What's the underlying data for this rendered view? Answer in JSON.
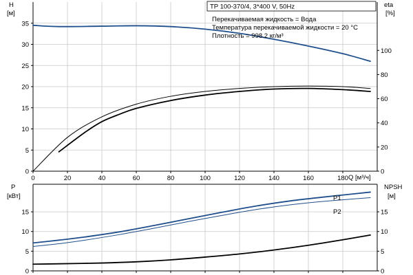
{
  "title": "TP 100-370/4, 3*400 V, 50Hz",
  "info_lines": [
    "Перекачиваемая жидкость = Вода",
    "Температура перекачиваемой жидкости = 20 °C",
    "Плотность = 998.2 кг/м³"
  ],
  "colors": {
    "blue": "#1f4e8c",
    "black": "#000000",
    "grid": "#c8c8c8"
  },
  "chart_data": [
    {
      "type": "line",
      "name": "top",
      "xlabel": "Q [м³/ч]",
      "xlim": [
        0,
        200
      ],
      "xticks": [
        0,
        20,
        40,
        60,
        80,
        100,
        120,
        140,
        160,
        180
      ],
      "x_tick_labels": [
        "0",
        "20",
        "40",
        "60",
        "80",
        "100",
        "120",
        "140",
        "160",
        "180"
      ],
      "left_axis": {
        "label": "H",
        "unit": "[м]",
        "ylim": [
          0,
          40
        ],
        "ticks": [
          0,
          5,
          10,
          15,
          20,
          25,
          30,
          35
        ],
        "tick_labels": [
          "0",
          "5",
          "10",
          "15",
          "20",
          "25",
          "30",
          "35"
        ]
      },
      "right_axis": {
        "label": "eta",
        "unit": "[%]",
        "ylim": [
          0,
          140
        ],
        "ticks": [
          0,
          20,
          40,
          60,
          80,
          100
        ],
        "tick_labels": [
          "0",
          "20",
          "40",
          "60",
          "80",
          "100"
        ]
      },
      "grid": true,
      "series": [
        {
          "axis": "left",
          "color": "blue",
          "width": 1.8,
          "x": [
            0,
            15,
            40,
            60,
            80,
            100,
            120,
            140,
            160,
            180,
            196
          ],
          "y": [
            34.5,
            34.2,
            34.3,
            34.4,
            34.2,
            33.6,
            32.6,
            31.2,
            29.6,
            27.8,
            26.0
          ]
        },
        {
          "axis": "right",
          "color": "black",
          "width": 1.8,
          "x": [
            15,
            30,
            40,
            50,
            60,
            80,
            100,
            120,
            140,
            160,
            180,
            196
          ],
          "y": [
            16,
            32,
            41,
            47,
            52,
            58.5,
            63,
            66,
            68,
            68.5,
            67.5,
            66
          ]
        },
        {
          "axis": "right",
          "color": "black",
          "width": 1,
          "x": [
            0,
            20,
            40,
            60,
            80,
            100,
            120,
            140,
            160,
            180,
            196
          ],
          "y": [
            0,
            28,
            45,
            55.5,
            62,
            66,
            68.5,
            70,
            70.5,
            70,
            68.5
          ]
        }
      ]
    },
    {
      "type": "line",
      "name": "bottom",
      "xlim": [
        0,
        200
      ],
      "left_axis": {
        "label": "P",
        "unit": "[кВт]",
        "ylim": [
          0,
          22
        ],
        "ticks": [
          0,
          5,
          10,
          15
        ],
        "tick_labels": [
          "0",
          "5",
          "10",
          "15"
        ]
      },
      "right_axis": {
        "label": "NPSH",
        "unit": "[м]",
        "ylim": [
          0,
          22
        ],
        "ticks": [
          0,
          5,
          10,
          15
        ],
        "tick_labels": [
          "0",
          "5",
          "10",
          "15"
        ]
      },
      "grid": true,
      "series": [
        {
          "name": "P1",
          "axis": "left",
          "color": "blue",
          "width": 1.8,
          "x": [
            0,
            15,
            30,
            50,
            70,
            90,
            110,
            130,
            150,
            170,
            196
          ],
          "y": [
            7.1,
            7.8,
            8.6,
            9.9,
            11.5,
            13.2,
            14.9,
            16.5,
            17.8,
            18.8,
            20.0
          ]
        },
        {
          "name": "P2",
          "axis": "left",
          "color": "blue",
          "width": 1,
          "x": [
            0,
            15,
            30,
            50,
            70,
            90,
            110,
            130,
            150,
            170,
            196
          ],
          "y": [
            6.2,
            6.9,
            7.8,
            9.2,
            10.8,
            12.5,
            14.1,
            15.6,
            16.8,
            17.7,
            18.6
          ]
        },
        {
          "axis": "right",
          "color": "black",
          "width": 1.8,
          "x": [
            0,
            15,
            40,
            60,
            80,
            100,
            120,
            140,
            160,
            180,
            196
          ],
          "y": [
            1.7,
            1.8,
            2.0,
            2.3,
            2.8,
            3.5,
            4.3,
            5.3,
            6.5,
            7.9,
            9.1
          ]
        },
        {
          "axis": "right",
          "color": "black",
          "width": 1,
          "x": [
            0,
            15
          ],
          "y": [
            1.7,
            1.75
          ]
        }
      ]
    }
  ]
}
